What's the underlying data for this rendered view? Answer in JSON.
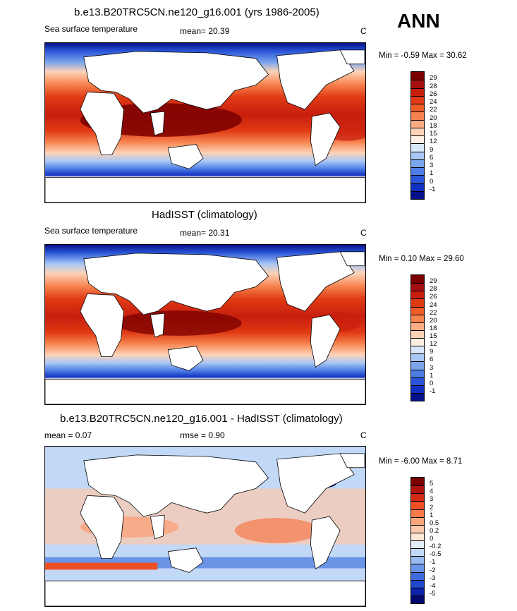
{
  "season": "ANN",
  "panels": [
    {
      "title": "b.e13.B20TRC5CN.ne120_g16.001 (yrs 1986-2005)",
      "left_label": "Sea surface temperature",
      "stat_text": "mean=  20.39",
      "units": "C",
      "minmax": "Min =  -0.59 Max =  30.62",
      "levels": [
        "29",
        "28",
        "26",
        "24",
        "22",
        "20",
        "18",
        "15",
        "12",
        "9",
        "6",
        "3",
        "1",
        "0",
        "-1"
      ],
      "colors": [
        "#7a0000",
        "#a50f0f",
        "#c81e0e",
        "#e03a14",
        "#ef5c2a",
        "#f7834f",
        "#fbac83",
        "#fdd3b8",
        "#fdf0e3",
        "#d8e8fb",
        "#a9c8f5",
        "#7aa4ec",
        "#4c7ce4",
        "#2a55d8",
        "#1030c0",
        "#06108a"
      ]
    },
    {
      "title": "HadISST (climatology)",
      "left_label": "Sea surface temperature",
      "stat_text": "mean=  20.31",
      "units": "C",
      "minmax": "Min =   0.10 Max =  29.60",
      "levels": [
        "29",
        "28",
        "26",
        "24",
        "22",
        "20",
        "18",
        "15",
        "12",
        "9",
        "6",
        "3",
        "1",
        "0",
        "-1"
      ],
      "colors": [
        "#7a0000",
        "#a50f0f",
        "#c81e0e",
        "#e03a14",
        "#ef5c2a",
        "#f7834f",
        "#fbac83",
        "#fdd3b8",
        "#fdf0e3",
        "#d8e8fb",
        "#a9c8f5",
        "#7aa4ec",
        "#4c7ce4",
        "#2a55d8",
        "#1030c0",
        "#06108a"
      ]
    },
    {
      "title": "b.e13.B20TRC5CN.ne120_g16.001 - HadISST (climatology)",
      "left_label": "mean =   0.07",
      "stat_text": "rmse =   0.90",
      "units": "C",
      "minmax": "Min =  -6.00 Max =   8.71",
      "levels": [
        "5",
        "4",
        "3",
        "2",
        "1",
        "0.5",
        "0.2",
        "0",
        "-0.2",
        "-0.5",
        "-1",
        "-2",
        "-3",
        "-4",
        "-5"
      ],
      "colors": [
        "#7a0000",
        "#b01210",
        "#d42a16",
        "#ec4f26",
        "#f6794a",
        "#fba37a",
        "#fdc9ab",
        "#fde8d8",
        "#e4eefb",
        "#c2d8f7",
        "#98baf0",
        "#6a94e6",
        "#3f6cdc",
        "#1f47cc",
        "#0c22aa",
        "#04086e"
      ]
    }
  ]
}
